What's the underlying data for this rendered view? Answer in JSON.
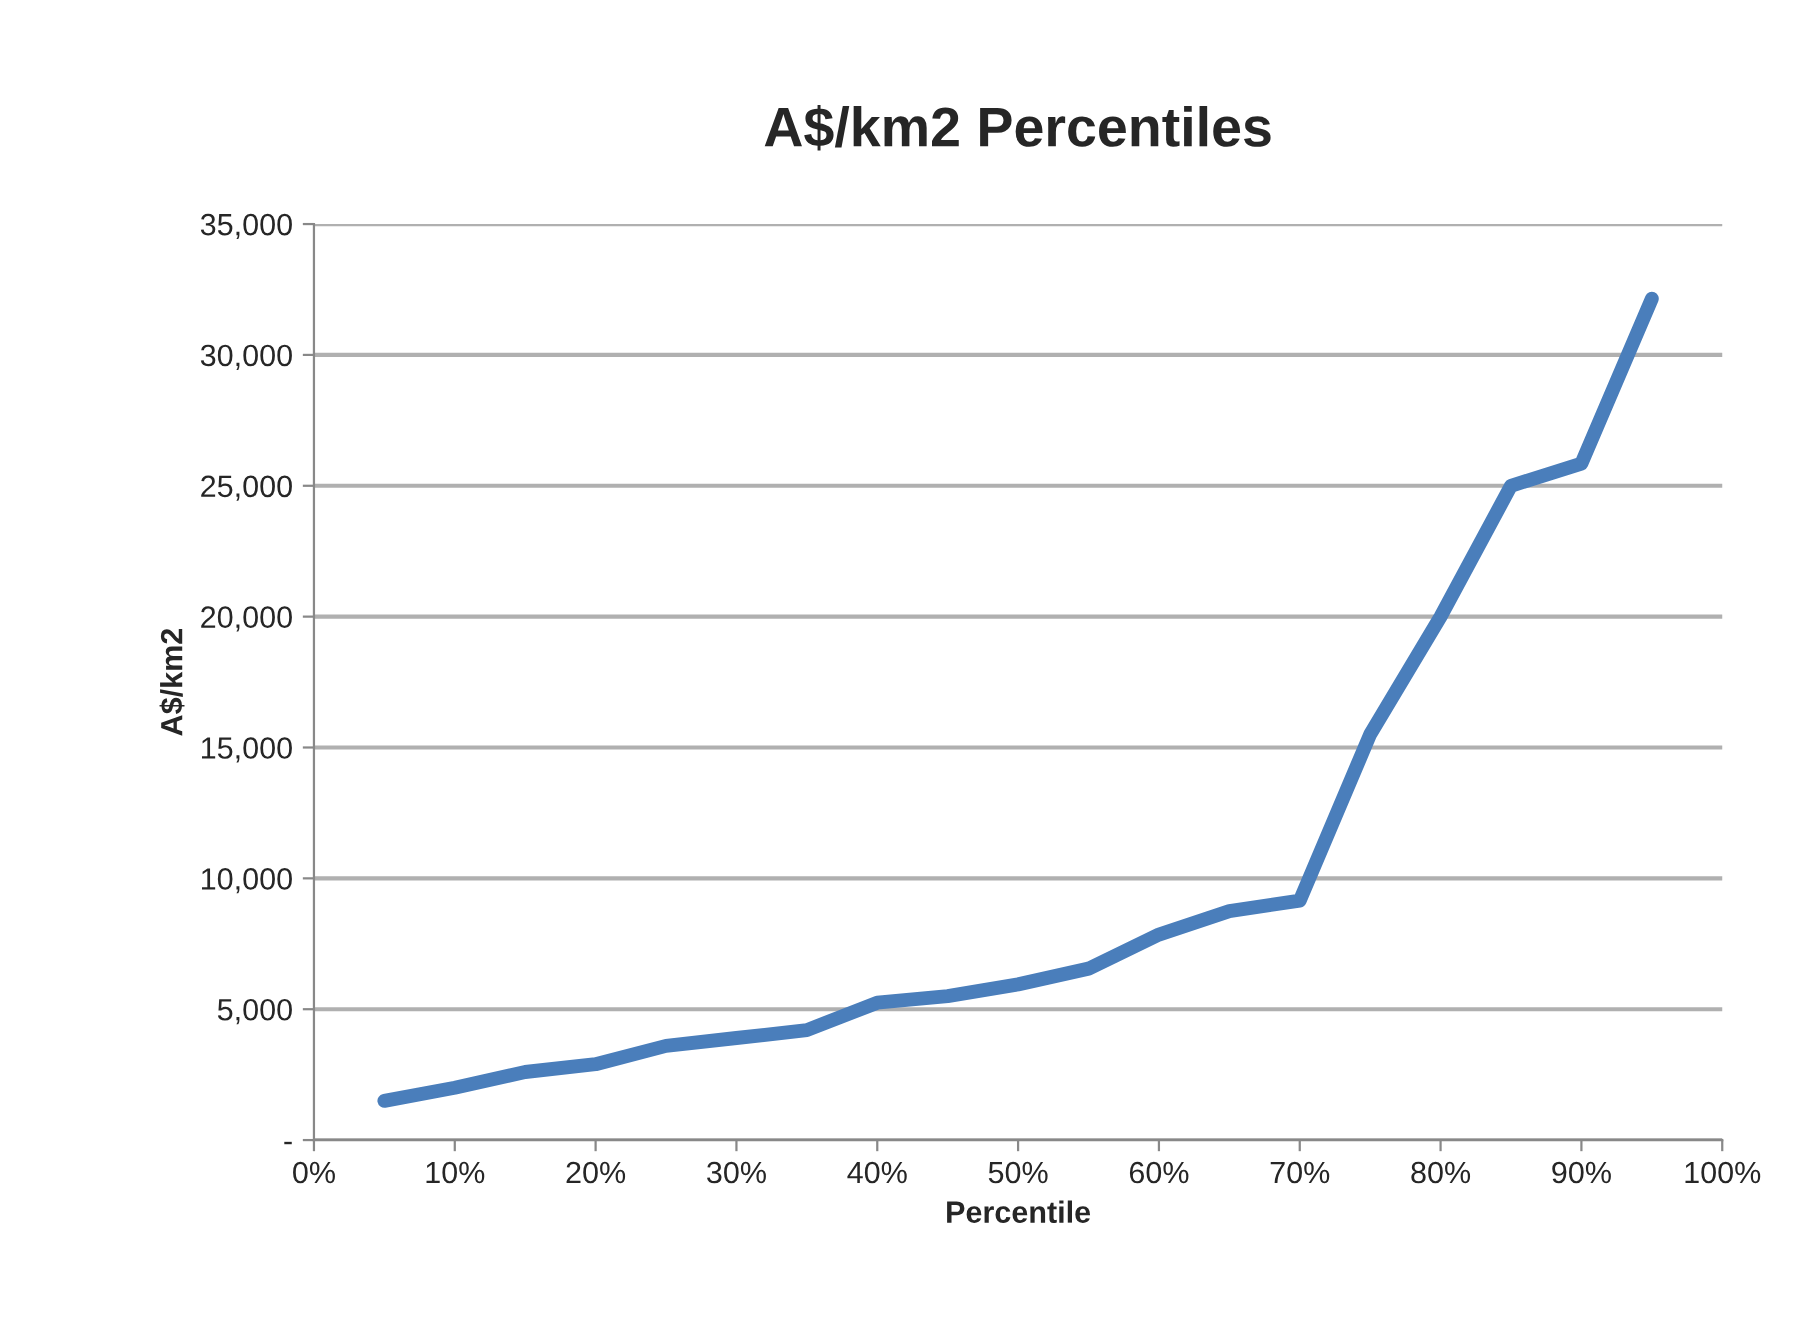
{
  "chart_data": {
    "type": "line",
    "title": "A$/km2 Percentiles",
    "xlabel": "Percentile",
    "ylabel": "A$/km2",
    "x": [
      5,
      10,
      15,
      20,
      25,
      30,
      35,
      40,
      45,
      50,
      55,
      60,
      65,
      70,
      75,
      80,
      85,
      90,
      95
    ],
    "series": [
      {
        "color": "#4a7ebb",
        "values": [
          1500,
          2000,
          2600,
          2900,
          3600,
          3900,
          4200,
          5250,
          5500,
          5950,
          6550,
          7850,
          8750,
          9150,
          15500,
          20000,
          25000,
          25850,
          32150
        ]
      }
    ],
    "xlim": [
      0,
      100
    ],
    "xticks": [
      {
        "value": 0,
        "label": "0%"
      },
      {
        "value": 10,
        "label": "10%"
      },
      {
        "value": 20,
        "label": "20%"
      },
      {
        "value": 30,
        "label": "30%"
      },
      {
        "value": 40,
        "label": "40%"
      },
      {
        "value": 50,
        "label": "50%"
      },
      {
        "value": 60,
        "label": "60%"
      },
      {
        "value": 70,
        "label": "70%"
      },
      {
        "value": 80,
        "label": "80%"
      },
      {
        "value": 90,
        "label": "90%"
      },
      {
        "value": 100,
        "label": "100%"
      }
    ],
    "ylim": [
      0,
      35000
    ],
    "yticks": [
      {
        "value": 0,
        "label": "-"
      },
      {
        "value": 5000,
        "label": "5,000"
      },
      {
        "value": 10000,
        "label": "10,000"
      },
      {
        "value": 15000,
        "label": "15,000"
      },
      {
        "value": 20000,
        "label": "20,000"
      },
      {
        "value": 25000,
        "label": "25,000"
      },
      {
        "value": 30000,
        "label": "30,000"
      },
      {
        "value": 35000,
        "label": "35,000"
      }
    ],
    "grid": "y",
    "line_style": "solid"
  }
}
